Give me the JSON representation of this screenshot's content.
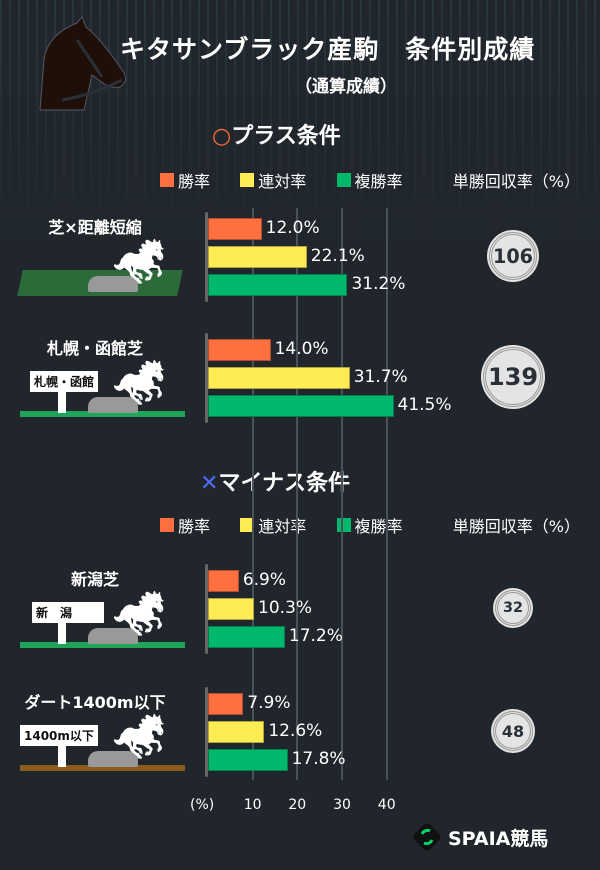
{
  "header": {
    "title": "キタサンブラック産駒　条件別成績",
    "subtitle": "（通算成績）"
  },
  "sections": [
    {
      "mark": "○",
      "mark_color": "#ff6b35",
      "title": "プラス条件"
    },
    {
      "mark": "✕",
      "mark_color": "#4a6cf7",
      "title": "マイナス条件"
    }
  ],
  "legend": {
    "win": "勝率",
    "top2": "連対率",
    "top3": "複勝率",
    "roi": "単勝回収率（%）"
  },
  "colors": {
    "win": "#ff6f3f",
    "top2": "#ffec55",
    "top3": "#00b86b"
  },
  "chart_data": {
    "type": "bar",
    "orientation": "horizontal",
    "xlim": [
      0,
      40
    ],
    "xticks": [
      10,
      20,
      30,
      40
    ],
    "xunit": "(%)",
    "grid": true,
    "series_names": [
      "勝率",
      "連対率",
      "複勝率"
    ],
    "groups": [
      {
        "label": "芝×距離短縮",
        "sign": "",
        "values": [
          12.0,
          22.1,
          31.2
        ],
        "labels": [
          "12.0%",
          "22.1%",
          "31.2%"
        ],
        "roi": "106"
      },
      {
        "label": "札幌・函館芝",
        "sign": "札幌・函館",
        "values": [
          14.0,
          31.7,
          41.5
        ],
        "labels": [
          "14.0%",
          "31.7%",
          "41.5%"
        ],
        "roi": "139"
      },
      {
        "label": "新潟芝",
        "sign": "新　潟",
        "values": [
          6.9,
          10.3,
          17.2
        ],
        "labels": [
          "6.9%",
          "10.3%",
          "17.2%"
        ],
        "roi": "32"
      },
      {
        "label": "ダート1400m以下",
        "sign": "1400m以下",
        "values": [
          7.9,
          12.6,
          17.8
        ],
        "labels": [
          "7.9%",
          "12.6%",
          "17.8%"
        ],
        "roi": "48"
      }
    ]
  },
  "logo": {
    "text": "SPAIA競馬"
  }
}
